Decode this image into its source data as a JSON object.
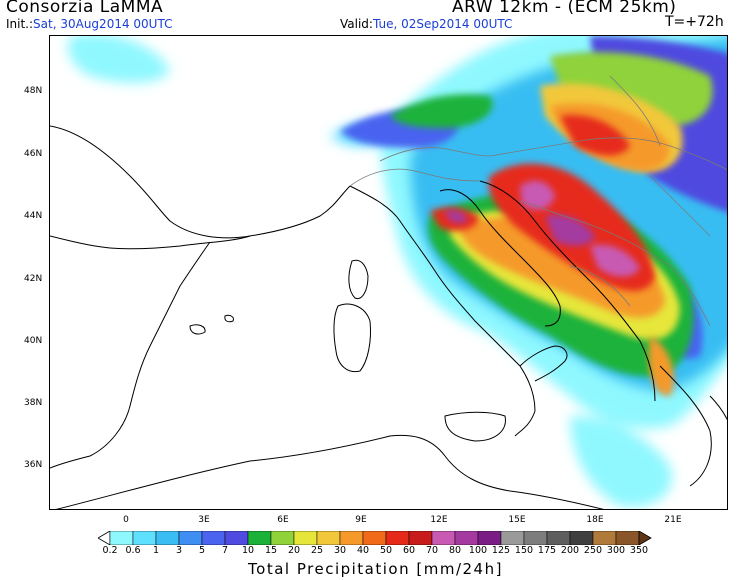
{
  "header": {
    "org": "Consorzia LaMMA",
    "model": "ARW 12km - (ECM 25km)",
    "init_label": "Init.:",
    "init_value": "Sat, 30Aug2014 00UTC",
    "valid_label": "Valid:",
    "valid_value": "Tue, 02Sep2014 00UTC",
    "timestep": "T=+72h"
  },
  "map": {
    "lat_labels": [
      "48N",
      "46N",
      "44N",
      "42N",
      "40N",
      "38N",
      "36N"
    ],
    "lon_labels": [
      "0",
      "3E",
      "6E",
      "9E",
      "12E",
      "15E",
      "18E",
      "21E"
    ]
  },
  "colorbar": {
    "title": "Total Precipitation [mm/24h]",
    "levels": [
      "0.2",
      "0.6",
      "1",
      "3",
      "5",
      "7",
      "10",
      "15",
      "20",
      "25",
      "30",
      "40",
      "50",
      "60",
      "70",
      "80",
      "100",
      "125",
      "150",
      "175",
      "200",
      "250",
      "300",
      "350"
    ],
    "colors": [
      "#8ff8ff",
      "#5fe0ff",
      "#39bdf2",
      "#3f8ef2",
      "#4a64f0",
      "#4f4ae0",
      "#1cb23a",
      "#8fd23a",
      "#e6e63a",
      "#f2c83a",
      "#f59a2a",
      "#f06a1a",
      "#e62a1a",
      "#c81c1c",
      "#c85ab4",
      "#a43aa0",
      "#7a1e86",
      "#9a9a9a",
      "#7d7d7d",
      "#5e5e5e",
      "#3f3f3f",
      "#b07a3a",
      "#8a5528",
      "#5e3516"
    ]
  }
}
